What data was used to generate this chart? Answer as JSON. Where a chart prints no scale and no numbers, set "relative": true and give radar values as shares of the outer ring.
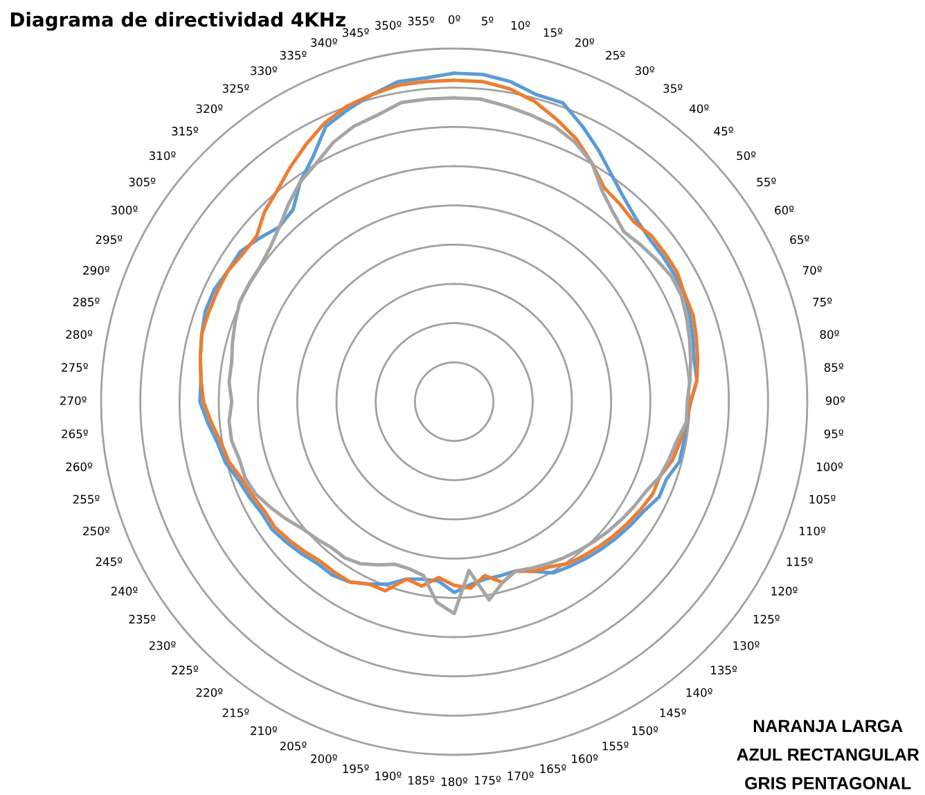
{
  "chart_data": {
    "type": "radar",
    "title": "Diagrama de directividad 4KHz",
    "relative": true,
    "grid": true,
    "legend": false,
    "categories": [
      "0º",
      "5º",
      "10º",
      "15º",
      "20º",
      "25º",
      "30º",
      "35º",
      "40º",
      "45º",
      "50º",
      "55º",
      "60º",
      "65º",
      "70º",
      "75º",
      "80º",
      "85º",
      "90º",
      "95º",
      "100º",
      "105º",
      "110º",
      "115º",
      "120º",
      "125º",
      "130º",
      "135º",
      "140º",
      "145º",
      "150º",
      "155º",
      "160º",
      "165º",
      "170º",
      "175º",
      "180º",
      "185º",
      "190º",
      "195º",
      "200º",
      "205º",
      "210º",
      "215º",
      "220º",
      "225º",
      "230º",
      "235º",
      "240º",
      "245º",
      "250º",
      "255º",
      "260º",
      "265º",
      "270º",
      "275º",
      "280º",
      "285º",
      "290º",
      "295º",
      "300º",
      "305º",
      "310º",
      "315º",
      "320º",
      "325º",
      "330º",
      "335º",
      "340º",
      "345º",
      "350º",
      "355º"
    ],
    "series": [
      {
        "color": "#5b9bd5",
        "values": [
          0.93,
          0.93,
          0.92,
          0.9,
          0.9,
          0.86,
          0.82,
          0.78,
          0.75,
          0.73,
          0.72,
          0.72,
          0.72,
          0.72,
          0.71,
          0.7,
          0.69,
          0.69,
          0.67,
          0.66,
          0.66,
          0.66,
          0.64,
          0.64,
          0.62,
          0.61,
          0.6,
          0.59,
          0.58,
          0.57,
          0.56,
          0.53,
          0.51,
          0.51,
          0.51,
          0.52,
          0.54,
          0.51,
          0.51,
          0.52,
          0.55,
          0.57,
          0.59,
          0.6,
          0.6,
          0.61,
          0.62,
          0.63,
          0.63,
          0.64,
          0.65,
          0.67,
          0.68,
          0.7,
          0.72,
          0.72,
          0.73,
          0.74,
          0.75,
          0.75,
          0.74,
          0.74,
          0.72,
          0.7,
          0.71,
          0.76,
          0.8,
          0.86,
          0.88,
          0.9,
          0.92,
          0.92
        ]
      },
      {
        "color": "#ed7d31",
        "values": [
          0.91,
          0.91,
          0.9,
          0.88,
          0.85,
          0.82,
          0.78,
          0.74,
          0.73,
          0.72,
          0.73,
          0.73,
          0.73,
          0.72,
          0.72,
          0.71,
          0.7,
          0.69,
          0.67,
          0.66,
          0.65,
          0.64,
          0.62,
          0.62,
          0.61,
          0.6,
          0.59,
          0.58,
          0.57,
          0.56,
          0.54,
          0.53,
          0.51,
          0.53,
          0.5,
          0.53,
          0.52,
          0.5,
          0.53,
          0.52,
          0.57,
          0.57,
          0.59,
          0.59,
          0.59,
          0.6,
          0.61,
          0.62,
          0.62,
          0.63,
          0.64,
          0.66,
          0.67,
          0.69,
          0.71,
          0.72,
          0.73,
          0.74,
          0.74,
          0.74,
          0.74,
          0.73,
          0.73,
          0.76,
          0.78,
          0.81,
          0.84,
          0.87,
          0.89,
          0.9,
          0.91,
          0.91
        ]
      },
      {
        "color": "#a5a5a5",
        "values": [
          0.86,
          0.86,
          0.85,
          0.84,
          0.83,
          0.81,
          0.78,
          0.73,
          0.7,
          0.68,
          0.69,
          0.7,
          0.71,
          0.71,
          0.7,
          0.69,
          0.68,
          0.67,
          0.66,
          0.66,
          0.64,
          0.63,
          0.62,
          0.6,
          0.59,
          0.58,
          0.57,
          0.56,
          0.55,
          0.54,
          0.53,
          0.52,
          0.51,
          0.53,
          0.57,
          0.48,
          0.6,
          0.57,
          0.5,
          0.49,
          0.49,
          0.51,
          0.53,
          0.54,
          0.54,
          0.55,
          0.56,
          0.58,
          0.6,
          0.62,
          0.63,
          0.63,
          0.64,
          0.64,
          0.63,
          0.64,
          0.64,
          0.65,
          0.66,
          0.67,
          0.67,
          0.67,
          0.68,
          0.7,
          0.73,
          0.76,
          0.78,
          0.81,
          0.83,
          0.84,
          0.86,
          0.86
        ]
      }
    ],
    "annotations": [
      "NARANJA LARGA",
      "AZUL RECTANGULAR",
      "GRIS PENTAGONAL"
    ]
  }
}
